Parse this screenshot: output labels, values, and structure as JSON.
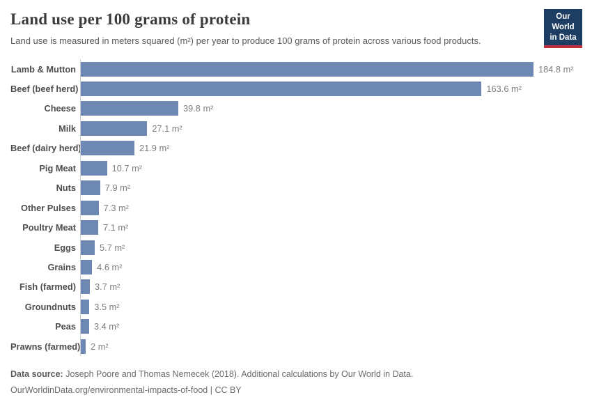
{
  "header": {
    "title": "Land use per 100 grams of protein",
    "subtitle": "Land use is measured in meters squared (m²) per year to produce 100 grams of protein across various food products.",
    "logo": {
      "line1": "Our World",
      "line2": "in Data",
      "bg_color": "#1d3d63",
      "accent_color": "#c0313c"
    }
  },
  "chart_data": {
    "type": "bar",
    "orientation": "horizontal",
    "title": "Land use per 100 grams of protein",
    "xlabel": "",
    "ylabel": "",
    "unit": "m²",
    "xlim": [
      0,
      184.8
    ],
    "grid": false,
    "legend": "none",
    "bar_color": "#6d89b3",
    "categories": [
      "Lamb & Mutton",
      "Beef (beef herd)",
      "Cheese",
      "Milk",
      "Beef (dairy herd)",
      "Pig Meat",
      "Nuts",
      "Other Pulses",
      "Poultry Meat",
      "Eggs",
      "Grains",
      "Fish (farmed)",
      "Groundnuts",
      "Peas",
      "Prawns (farmed)"
    ],
    "values": [
      184.8,
      163.6,
      39.8,
      27.1,
      21.9,
      10.7,
      7.9,
      7.3,
      7.1,
      5.7,
      4.6,
      3.7,
      3.5,
      3.4,
      2
    ],
    "value_labels": [
      "184.8 m²",
      "163.6 m²",
      "39.8 m²",
      "27.1 m²",
      "21.9 m²",
      "10.7 m²",
      "7.9 m²",
      "7.3 m²",
      "7.1 m²",
      "5.7 m²",
      "4.6 m²",
      "3.7 m²",
      "3.5 m²",
      "3.4 m²",
      "2 m²"
    ]
  },
  "footer": {
    "source_label": "Data source:",
    "source_text": " Joseph Poore and Thomas Nemecek (2018). Additional calculations by Our World in Data.",
    "link_text": "OurWorldinData.org/environmental-impacts-of-food",
    "separator": " | ",
    "license": "CC BY"
  }
}
